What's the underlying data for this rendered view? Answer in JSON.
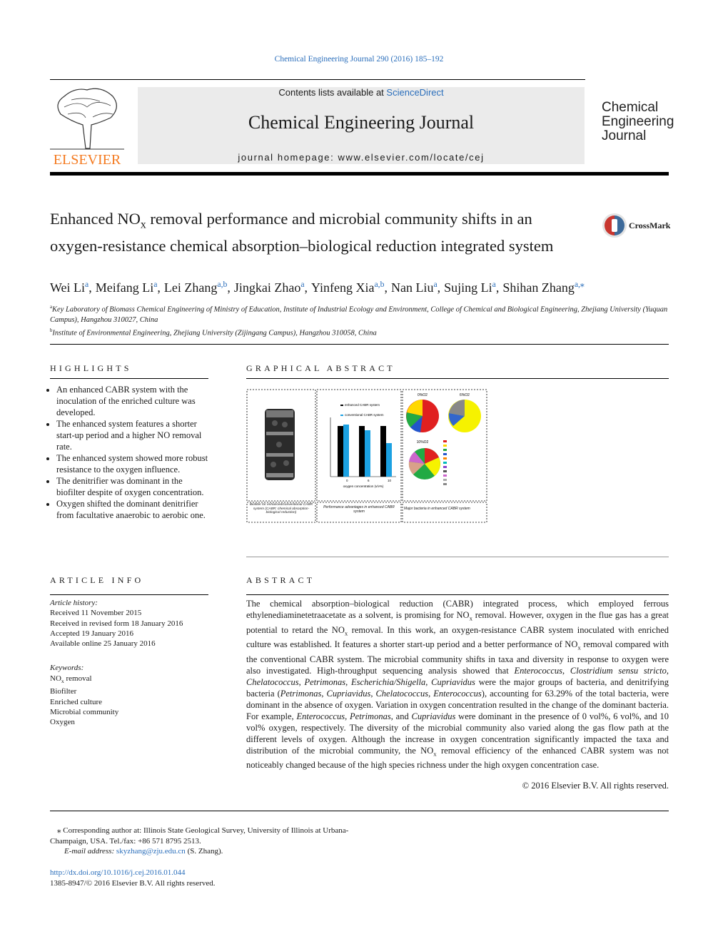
{
  "header": {
    "journal_ref": "Chemical Engineering Journal 290 (2016) 185–192",
    "contents": "Contents lists available at",
    "sciencedirect": "ScienceDirect",
    "journal_title": "Chemical Engineering Journal",
    "homepage": "journal homepage: www.elsevier.com/locate/cej",
    "publisher": "ELSEVIER",
    "logo_lines": [
      "Chemical",
      "Engineering",
      "Journal"
    ],
    "crossmark": "CrossMark"
  },
  "title": [
    {
      "text": "Enhanced NO"
    },
    {
      "sub": "x"
    },
    {
      "text": " removal performance and microbial community shifts in an oxygen-resistance chemical absorption–biological reduction integrated system"
    }
  ],
  "authors": [
    {
      "name": "Wei Li",
      "aff": "a",
      "sep": ","
    },
    {
      "name": "Meifang Li",
      "aff": "a",
      "sep": ","
    },
    {
      "name": "Lei Zhang",
      "aff": "a,b",
      "sep": ","
    },
    {
      "name": "Jingkai Zhao",
      "aff": "a",
      "sep": ","
    },
    {
      "name": "Yinfeng Xia",
      "aff": "a,b",
      "sep": ","
    },
    {
      "name": "Nan Liu",
      "aff": "a",
      "sep": ","
    },
    {
      "name": "Sujing Li",
      "aff": "a",
      "sep": ","
    },
    {
      "name": "Shihan Zhang",
      "aff": "a,⁎"
    }
  ],
  "affiliations": [
    {
      "mark": "a",
      "text": "Key Laboratory of Biomass Chemical Engineering of Ministry of Education, Institute of Industrial Ecology and Environment, College of Chemical and Biological Engineering, Zhejiang University (Yuquan Campus), Hangzhou 310027, China"
    },
    {
      "mark": "b",
      "text": "Institute of Environmental Engineering, Zhejiang University (Zijingang Campus), Hangzhou 310058, China"
    }
  ],
  "highlights": {
    "heading": "HIGHLIGHTS",
    "items": [
      "An enhanced CABR system with the inoculation of the enriched culture was developed.",
      "The enhanced system features a shorter start-up period and a higher NO removal rate.",
      "The enhanced system showed more robust resistance to the oxygen influence.",
      "The denitrifier was dominant in the biofilter despite of oxygen concentration.",
      "Oxygen shifted the dominant denitrifier from facultative anaerobic to aerobic one."
    ]
  },
  "graphical_abstract": {
    "heading": "GRAPHICAL ABSTRACT",
    "legend": [
      "enhanced CABR system",
      "conventional CABR system"
    ],
    "x_label": "oxygen concentration (v/v%)",
    "x_ticks": [
      "0",
      "6",
      "10"
    ],
    "pie_labels": [
      "0%O2",
      "6%O2",
      "10%O2"
    ],
    "captions": [
      "Biofilter for enhanced/conventional CABR system (CABR: chemical absorption-biological reduction)",
      "Performance advantages in enhanced CABR system",
      "Major bacteria in enhanced CABR system"
    ]
  },
  "article_info": {
    "heading": "ARTICLE INFO",
    "history_label": "Article history:",
    "history": [
      "Received 11 November 2015",
      "Received in revised form 18 January 2016",
      "Accepted 19 January 2016",
      "Available online 25 January 2016"
    ],
    "keywords_label": "Keywords:",
    "keywords": [
      [
        {
          "text": "NO"
        },
        {
          "sub": "x"
        },
        {
          "text": " removal"
        }
      ],
      "Biofilter",
      "Enriched culture",
      "Microbial community",
      "Oxygen"
    ]
  },
  "abstract": {
    "heading": "ABSTRACT",
    "segments": [
      {
        "text": "The chemical absorption–biological reduction (CABR) integrated process, which employed ferrous ethylenediaminetetraacetate as a solvent, is promising for NO"
      },
      {
        "sub": "x"
      },
      {
        "text": " removal. However, oxygen in the flue gas has a great potential to retard the NO"
      },
      {
        "sub": "x"
      },
      {
        "text": " removal. In this work, an oxygen-resistance CABR system inoculated with enriched culture was established. It features a shorter start-up period and a better performance of NO"
      },
      {
        "sub": "x"
      },
      {
        "text": " removal compared with the conventional CABR system. The microbial community shifts in taxa and diversity in response to oxygen were also investigated. High-throughput sequencing analysis showed that "
      },
      {
        "italic": "Enterococcus"
      },
      {
        "text": ", "
      },
      {
        "italic": "Clostridium sensu stricto"
      },
      {
        "text": ", "
      },
      {
        "italic": "Chelatococcus"
      },
      {
        "text": ", "
      },
      {
        "italic": "Petrimonas"
      },
      {
        "text": ", "
      },
      {
        "italic": "Escherichia/Shigella"
      },
      {
        "text": ", "
      },
      {
        "italic": "Cupriavidus"
      },
      {
        "text": " were the major groups of bacteria, and denitrifying bacteria ("
      },
      {
        "italic": "Petrimonas"
      },
      {
        "text": ", "
      },
      {
        "italic": "Cupriavidus"
      },
      {
        "text": ", "
      },
      {
        "italic": "Chelatococcus"
      },
      {
        "text": ", "
      },
      {
        "italic": "Enterococcus"
      },
      {
        "text": "), accounting for 63.29% of the total bacteria, were dominant in the absence of oxygen. Variation in oxygen concentration resulted in the change of the dominant bacteria. For example, "
      },
      {
        "italic": "Enterococcus"
      },
      {
        "text": ", "
      },
      {
        "italic": "Petrimonas"
      },
      {
        "text": ", and "
      },
      {
        "italic": "Cupriavidus"
      },
      {
        "text": " were dominant in the presence of 0 vol%, 6 vol%, and 10 vol% oxygen, respectively. The diversity of the microbial community also varied along the gas flow path at the different levels of oxygen. Although the increase in oxygen concentration significantly impacted the taxa and distribution of the microbial community, the NO"
      },
      {
        "sub": "x"
      },
      {
        "text": " removal efficiency of the enhanced CABR system was not noticeably changed because of the high species richness under the high oxygen concentration case."
      }
    ],
    "copyright": "© 2016 Elsevier B.V. All rights reserved."
  },
  "footer": {
    "corr_mark": "⁎",
    "corr_text": "Corresponding author at: Illinois State Geological Survey, University of Illinois at Urbana-Champaign, USA. Tel./fax: +86 571 8795 2513.",
    "email_label": "E-mail address:",
    "email": "skyzhang@zju.edu.cn",
    "email_name": "(S. Zhang).",
    "doi": "http://dx.doi.org/10.1016/j.cej.2016.01.044",
    "issn": "1385-8947/© 2016 Elsevier B.V. All rights reserved."
  }
}
